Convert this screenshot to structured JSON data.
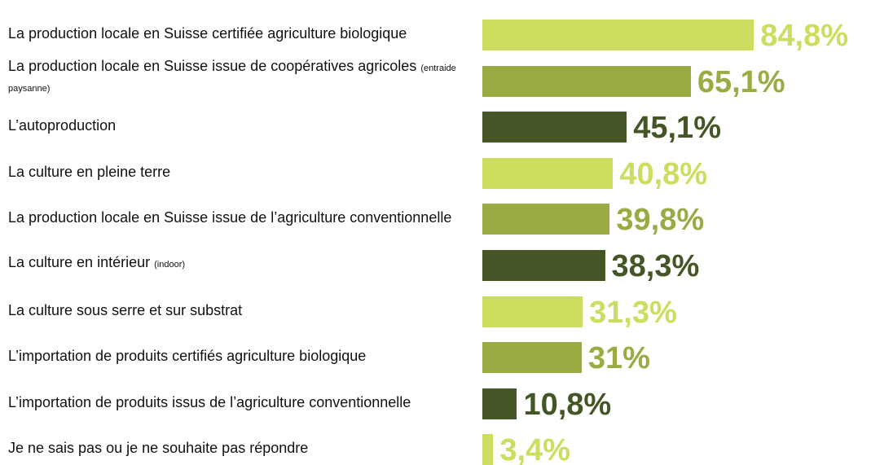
{
  "chart_data": {
    "type": "bar",
    "orientation": "horizontal",
    "categories": [
      "La production locale en Suisse certifiée agriculture biologique",
      "La production locale en Suisse issue de coopératives agricoles",
      "L’autoproduction",
      "La culture en pleine terre",
      "La production locale en Suisse issue de l’agriculture conventionnelle",
      "La culture en intérieur",
      "La culture sous serre et sur substrat",
      "L’importation de produits certifiés agriculture biologique",
      "L’importation de produits issus de l’agriculture conventionnelle",
      "Je ne sais pas ou je ne souhaite pas répondre"
    ],
    "category_notes": [
      null,
      "(entraide paysanne)",
      null,
      null,
      null,
      "(indoor)",
      null,
      null,
      null,
      null
    ],
    "values": [
      84.8,
      65.1,
      45.1,
      40.8,
      39.8,
      38.3,
      31.3,
      31,
      10.8,
      3.4
    ],
    "value_labels": [
      "84,8%",
      "65,1%",
      "45,1%",
      "40,8%",
      "39,8%",
      "38,3%",
      "31,3%",
      "31%",
      "10,8%",
      "3,4%"
    ],
    "colors": [
      "#cddd60",
      "#9bab43",
      "#445625",
      "#cddd60",
      "#9bab43",
      "#445625",
      "#cddd60",
      "#9bab43",
      "#445625",
      "#cddd60"
    ],
    "xlim": [
      0,
      100
    ]
  }
}
